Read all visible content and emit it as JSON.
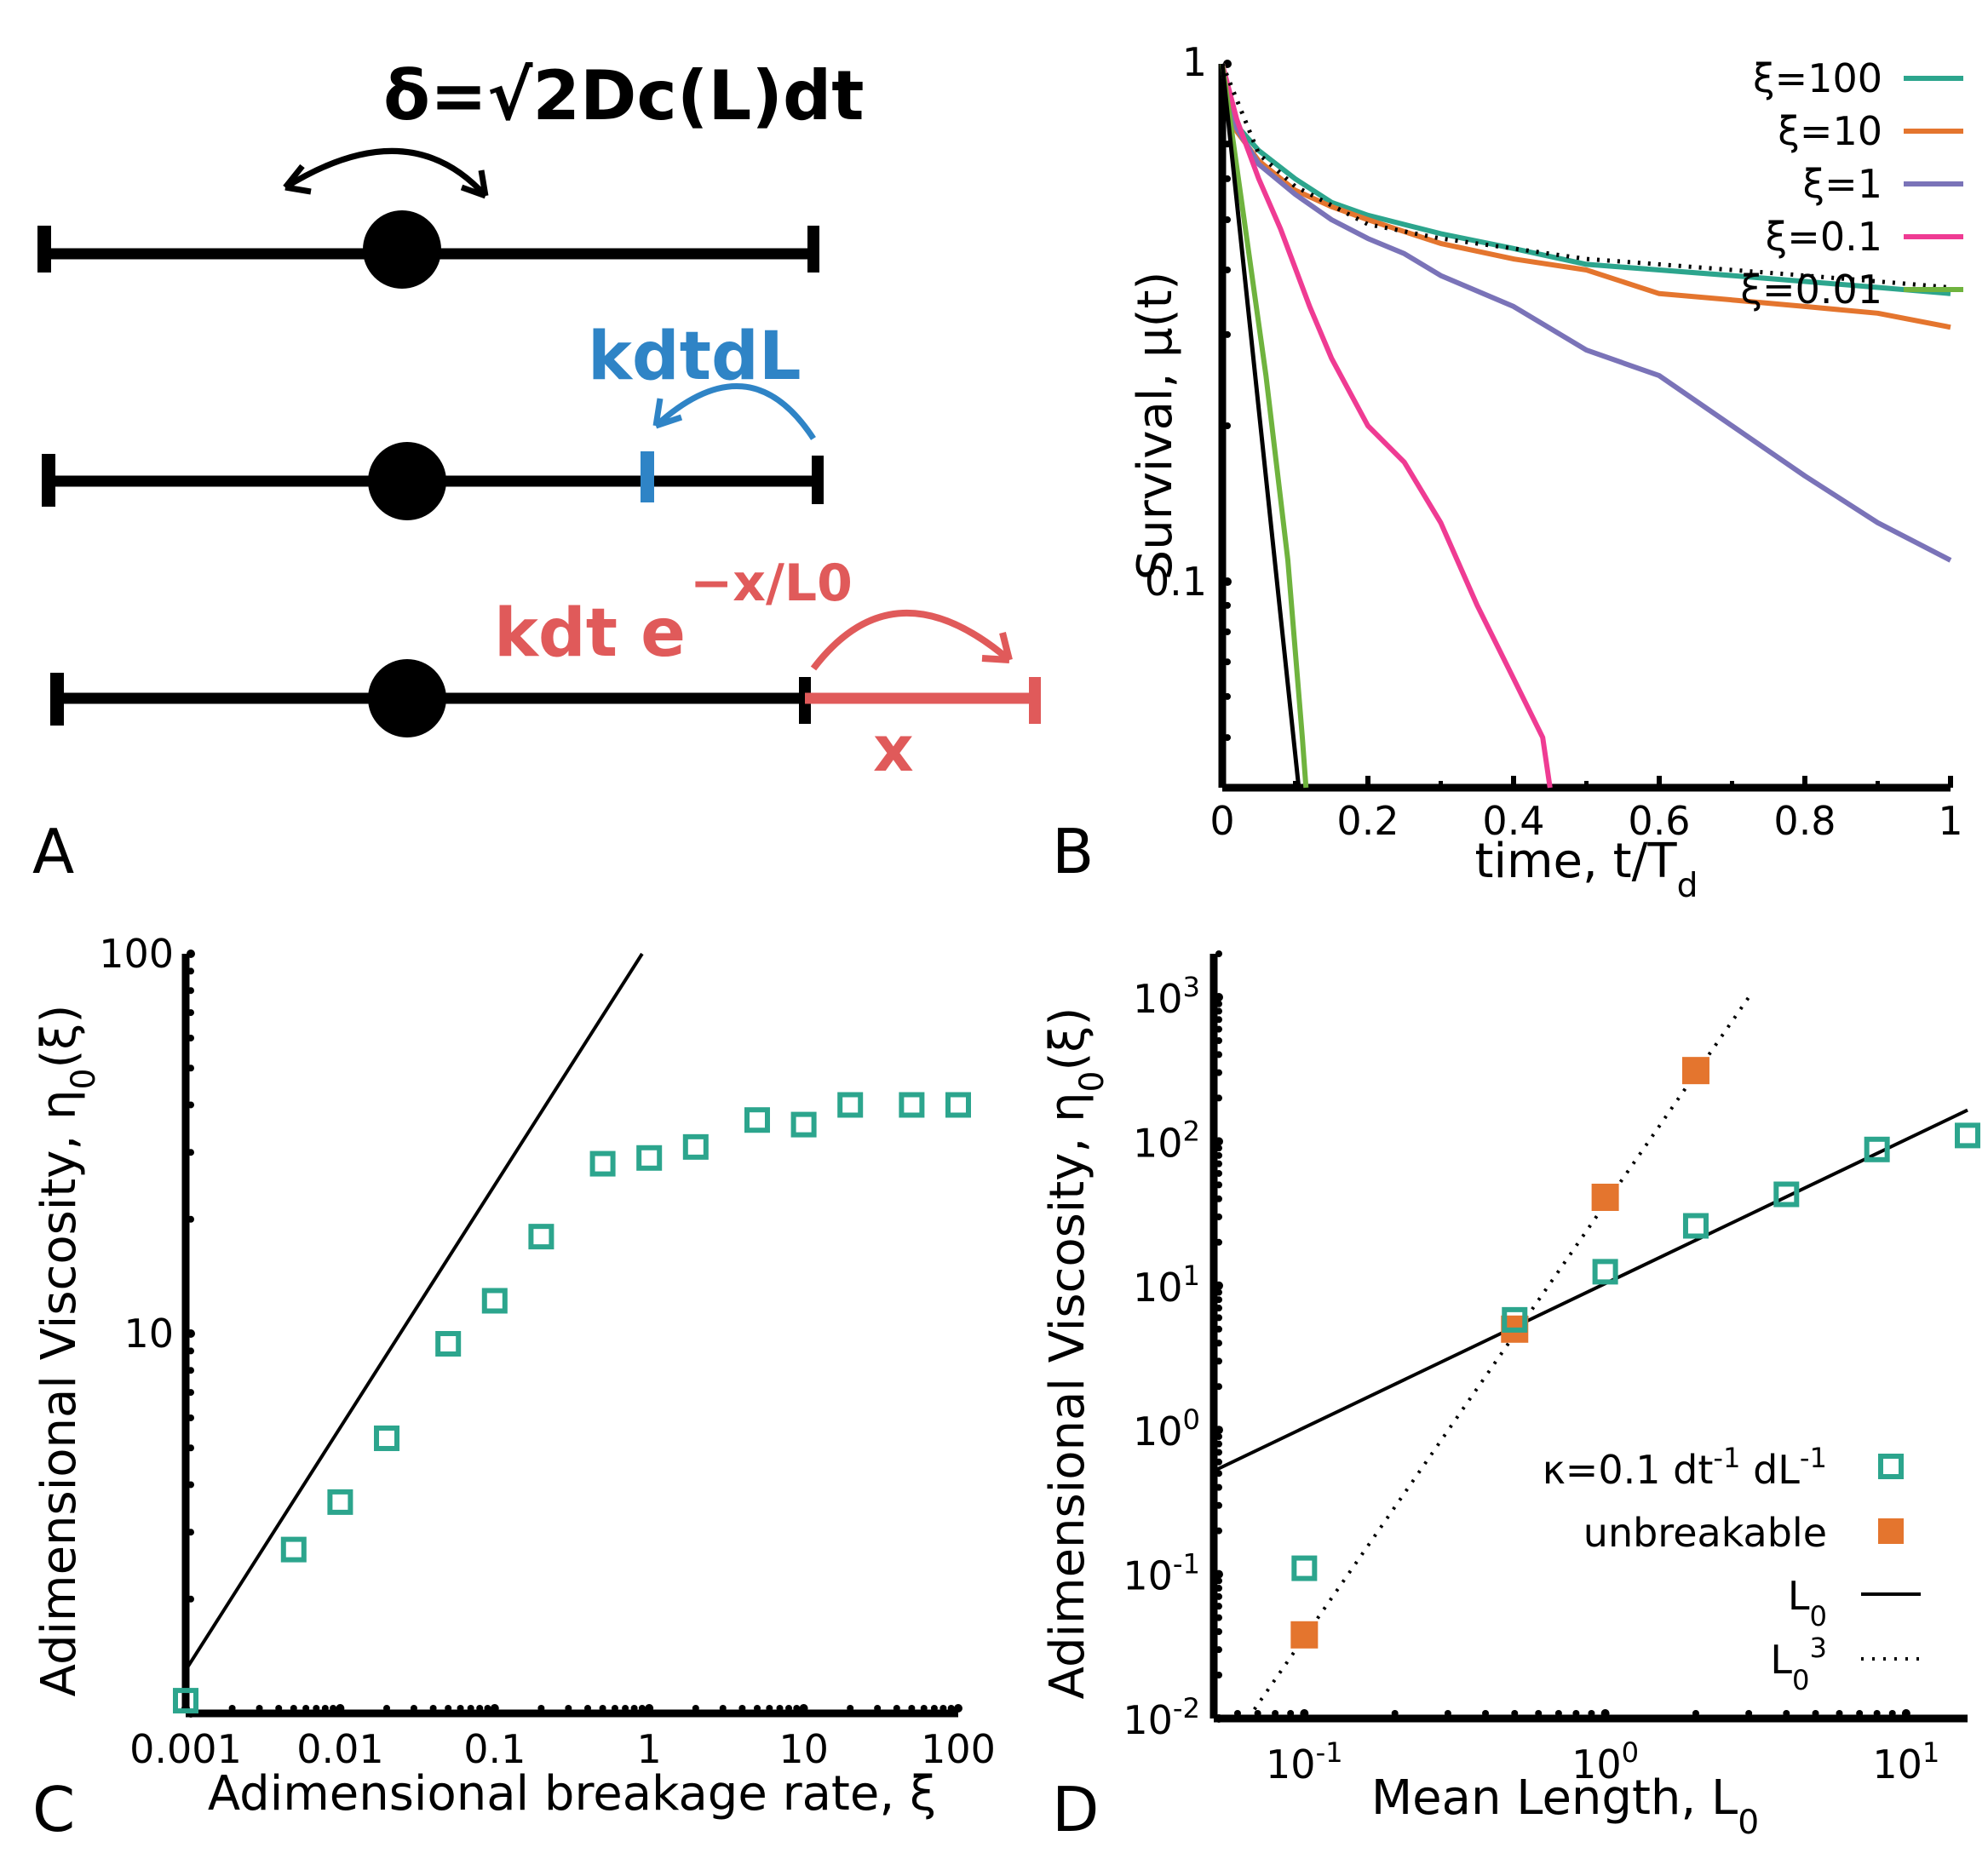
{
  "panels": [
    "A",
    "B",
    "C",
    "D"
  ],
  "colors": {
    "green": "#2ca58d",
    "orange": "#e4752e",
    "purple": "#7a73b8",
    "pink": "#ef3b93",
    "lightgreen": "#6fb33e",
    "blue": "#2f84c6",
    "red": "#e05a5a"
  },
  "panelA": {
    "formula": "δ=√2Dc(L)dt",
    "blue_label": "kdtdL",
    "red_label": "kdt e",
    "red_exponent": "−x/L0",
    "x_label": "x"
  },
  "chart_data": [
    {
      "panel": "B",
      "type": "line",
      "xlabel": "time, t/Td",
      "ylabel": "Survival, μ(t)",
      "xscale": "linear",
      "yscale": "log",
      "xlim": [
        0,
        1
      ],
      "ylim": [
        0.04,
        1
      ],
      "x_ticks": [
        "0",
        "0.2",
        "0.4",
        "0.6",
        "0.8",
        "1"
      ],
      "y_ticks": [
        "1",
        "0.1"
      ],
      "series": [
        {
          "name": "ξ=100",
          "color": "#2ca58d",
          "x": [
            0,
            0.02,
            0.05,
            0.1,
            0.15,
            0.2,
            0.3,
            0.4,
            0.5,
            0.6,
            0.7,
            0.8,
            0.9,
            1.0
          ],
          "y": [
            1,
            0.76,
            0.68,
            0.6,
            0.54,
            0.51,
            0.47,
            0.44,
            0.41,
            0.4,
            0.39,
            0.38,
            0.37,
            0.36
          ]
        },
        {
          "name": "ξ=10",
          "color": "#e4752e",
          "x": [
            0,
            0.02,
            0.05,
            0.1,
            0.15,
            0.2,
            0.3,
            0.4,
            0.5,
            0.6,
            0.7,
            0.8,
            0.9,
            1.0
          ],
          "y": [
            1,
            0.74,
            0.65,
            0.57,
            0.53,
            0.5,
            0.45,
            0.42,
            0.4,
            0.36,
            0.35,
            0.34,
            0.33,
            0.31
          ]
        },
        {
          "name": "ξ=1",
          "color": "#7a73b8",
          "x": [
            0,
            0.02,
            0.05,
            0.1,
            0.15,
            0.2,
            0.25,
            0.3,
            0.4,
            0.5,
            0.6,
            0.7,
            0.8,
            0.9,
            1.0
          ],
          "y": [
            1,
            0.75,
            0.64,
            0.56,
            0.5,
            0.46,
            0.43,
            0.39,
            0.34,
            0.28,
            0.25,
            0.2,
            0.16,
            0.13,
            0.11
          ]
        },
        {
          "name": "ξ=0.1",
          "color": "#ef3b93",
          "x": [
            0,
            0.02,
            0.05,
            0.08,
            0.12,
            0.15,
            0.2,
            0.25,
            0.3,
            0.35,
            0.4,
            0.44,
            0.45
          ],
          "y": [
            1,
            0.78,
            0.6,
            0.48,
            0.34,
            0.27,
            0.2,
            0.17,
            0.13,
            0.09,
            0.065,
            0.05,
            0.04
          ]
        },
        {
          "name": "ξ=0.01",
          "color": "#6fb33e",
          "x": [
            0,
            0.03,
            0.06,
            0.09,
            0.11,
            0.115
          ],
          "y": [
            1,
            0.5,
            0.25,
            0.11,
            0.05,
            0.04
          ]
        }
      ],
      "reference_lines": [
        {
          "style": "solid",
          "color": "#000000",
          "x": [
            0,
            0.105
          ],
          "y": [
            1,
            0.04
          ]
        },
        {
          "style": "dotted",
          "color": "#000000",
          "x": [
            0,
            0.05,
            0.1,
            0.2,
            0.3,
            0.4,
            0.5,
            0.6,
            0.7,
            0.8,
            0.9,
            1.0
          ],
          "y": [
            1,
            0.67,
            0.58,
            0.49,
            0.46,
            0.44,
            0.42,
            0.41,
            0.4,
            0.39,
            0.38,
            0.37
          ]
        }
      ]
    },
    {
      "panel": "C",
      "type": "scatter",
      "xlabel": "Adimensional breakage rate, ξ",
      "ylabel": "Adimensional Viscosity, η0(ξ)",
      "xscale": "log",
      "yscale": "log",
      "xlim": [
        0.001,
        100
      ],
      "ylim": [
        1,
        100
      ],
      "x_ticks": [
        "0.001",
        "0.01",
        "0.1",
        "1",
        "10",
        "100"
      ],
      "y_ticks": [
        "10",
        "100"
      ],
      "series": [
        {
          "name": "η0",
          "color": "#2ca58d",
          "marker": "open-square",
          "x": [
            0.001,
            0.005,
            0.01,
            0.02,
            0.05,
            0.1,
            0.2,
            0.5,
            1,
            2,
            5,
            10,
            20,
            50,
            100
          ],
          "y": [
            1.08,
            2.7,
            3.6,
            5.3,
            9.4,
            12.2,
            18.0,
            28.0,
            29.0,
            31.0,
            36.5,
            35.5,
            40.0,
            40.0,
            40.0
          ]
        }
      ],
      "fit_line": {
        "color": "#000000",
        "x": [
          0.001,
          0.9
        ],
        "y": [
          1.3,
          100
        ]
      }
    },
    {
      "panel": "D",
      "type": "scatter",
      "xlabel": "Mean Length, L0",
      "ylabel": "Adimensional Viscosity, η0(ξ)",
      "xscale": "log",
      "yscale": "log",
      "xlim": [
        0.05,
        16
      ],
      "ylim": [
        0.01,
        2000
      ],
      "x_ticks": [
        "10^-1",
        "10^0",
        "10^1"
      ],
      "y_ticks": [
        "10^-2",
        "10^-1",
        "10^0",
        "10^1",
        "10^2",
        "10^3"
      ],
      "series": [
        {
          "name": "κ=0.1 dt-1 dL-1",
          "color": "#2ca58d",
          "marker": "open-square",
          "x": [
            0.1,
            0.5,
            1,
            2,
            4,
            8,
            16
          ],
          "y": [
            0.11,
            5.8,
            12.5,
            26.0,
            43.0,
            88.0,
            110.0
          ]
        },
        {
          "name": "unbreakable",
          "color": "#e4752e",
          "marker": "filled-square",
          "x": [
            0.1,
            0.5,
            1,
            2
          ],
          "y": [
            0.038,
            5.0,
            41.0,
            310.0
          ]
        }
      ],
      "reference_lines": [
        {
          "name": "L0",
          "style": "solid",
          "x": [
            0.05,
            16
          ],
          "y": [
            0.52,
            165
          ]
        },
        {
          "name": "L0^3",
          "style": "dotted",
          "x": [
            0.065,
            3.0
          ],
          "y": [
            0.01,
            1000
          ]
        }
      ],
      "legend": [
        {
          "label": "κ=0.1 dt",
          "sup1": "-1",
          "mid": " dL",
          "sup2": "-1",
          "symbol": "open-square"
        },
        {
          "label": "unbreakable",
          "symbol": "filled-square"
        },
        {
          "label": "L",
          "sub": "0",
          "symbol": "solid-line"
        },
        {
          "label": "L",
          "sub": "0",
          "sup": "3",
          "symbol": "dotted-line"
        }
      ]
    }
  ]
}
